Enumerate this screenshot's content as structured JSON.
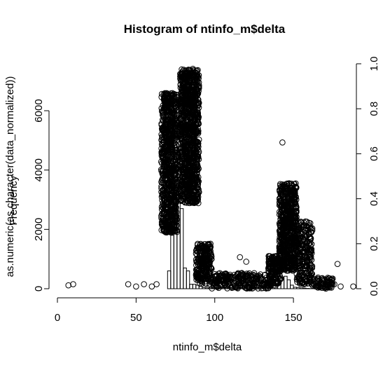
{
  "chart_data": {
    "type": "bar",
    "title": "Histogram of ntinfo_m$delta",
    "xlabel": "ntinfo_m$delta",
    "ylabel_left_overlap": [
      "Frequency",
      "as.numeric(as.character(data_normalized))"
    ],
    "xlim": [
      0,
      190
    ],
    "ylim_left": [
      0,
      6000
    ],
    "ylim_right": [
      0,
      1.0
    ],
    "x_ticks": [
      0,
      50,
      100,
      150
    ],
    "y_ticks_left": [
      0,
      2000,
      4000,
      6000
    ],
    "y_ticks_right": [
      0.0,
      0.2,
      0.4,
      0.6,
      0.8,
      1.0
    ],
    "histogram_bins_width": 2,
    "histogram_bins_start": 0,
    "histogram_counts": [
      0,
      0,
      0,
      0,
      0,
      0,
      0,
      0,
      0,
      0,
      0,
      0,
      0,
      0,
      0,
      0,
      0,
      0,
      0,
      0,
      0,
      0,
      0,
      0,
      0,
      0,
      0,
      0,
      0,
      0,
      0,
      0,
      0,
      0,
      0,
      600,
      1800,
      6600,
      5500,
      2700,
      700,
      600,
      150,
      150,
      120,
      80,
      40,
      30,
      30,
      30,
      30,
      30,
      30,
      30,
      30,
      30,
      30,
      30,
      30,
      30,
      30,
      30,
      30,
      30,
      30,
      30,
      30,
      30,
      30,
      30,
      200,
      380,
      420,
      300,
      120,
      50,
      40,
      30,
      20,
      10,
      5,
      5,
      5,
      5,
      5,
      0,
      0,
      0,
      0,
      0,
      0,
      0,
      0,
      0,
      0
    ],
    "scatter_series": [
      {
        "x_range": [
          66,
          76
        ],
        "y_range": [
          0.25,
          0.87
        ],
        "count": 900
      },
      {
        "x_range": [
          78,
          90
        ],
        "y_range": [
          0.38,
          0.98
        ],
        "count": 1100
      },
      {
        "x_range": [
          88,
          98
        ],
        "y_range": [
          0.02,
          0.2
        ],
        "count": 250
      },
      {
        "x_range": [
          98,
          136
        ],
        "y_range": [
          0.0,
          0.07
        ],
        "count": 280
      },
      {
        "x_range": [
          134,
          142
        ],
        "y_range": [
          0.02,
          0.15
        ],
        "count": 160
      },
      {
        "x_range": [
          141,
          152
        ],
        "y_range": [
          0.08,
          0.47
        ],
        "count": 700
      },
      {
        "x_range": [
          152,
          162
        ],
        "y_range": [
          0.02,
          0.3
        ],
        "count": 260
      },
      {
        "x_range": [
          162,
          175
        ],
        "y_range": [
          0.0,
          0.05
        ],
        "count": 80
      }
    ],
    "scatter_outliers": [
      {
        "x": 7,
        "y": 0.015
      },
      {
        "x": 10,
        "y": 0.02
      },
      {
        "x": 45,
        "y": 0.02
      },
      {
        "x": 50,
        "y": 0.01
      },
      {
        "x": 55,
        "y": 0.02
      },
      {
        "x": 60,
        "y": 0.01
      },
      {
        "x": 63,
        "y": 0.02
      },
      {
        "x": 176,
        "y": 0.02
      },
      {
        "x": 180,
        "y": 0.01
      },
      {
        "x": 188,
        "y": 0.01
      },
      {
        "x": 143,
        "y": 0.65
      },
      {
        "x": 120,
        "y": 0.12
      },
      {
        "x": 116,
        "y": 0.14
      },
      {
        "x": 178,
        "y": 0.11
      }
    ]
  }
}
